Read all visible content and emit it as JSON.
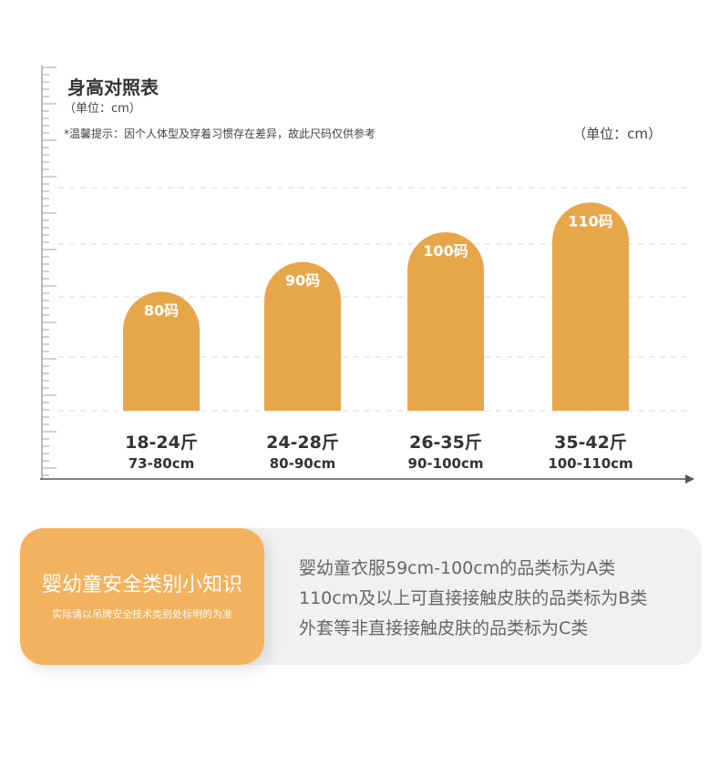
{
  "header": {
    "title": "身高对照表",
    "unit_small": "（单位：cm）",
    "tip": "*温馨提示：因个人体型及穿着习惯存在差异，故此尺码仅供参考",
    "unit_right": "（单位：cm）"
  },
  "chart_data": {
    "type": "bar",
    "title": "身高对照表",
    "categories": [
      "80码",
      "90码",
      "100码",
      "110码"
    ],
    "values": [
      80,
      90,
      100,
      110
    ],
    "weight_labels": [
      "18-24斤",
      "24-28斤",
      "26-35斤",
      "35-42斤"
    ],
    "height_ranges": [
      "73-80cm",
      "80-90cm",
      "90-100cm",
      "100-110cm"
    ],
    "unit": "cm",
    "ylim": [
      40,
      115
    ],
    "grid": true,
    "colors": {
      "bar": "#e8a64b",
      "grid": "#e2e2e2",
      "axis": "#555555",
      "ruler": "#b8b8b8"
    }
  },
  "info": {
    "badge_title": "婴幼童安全类别小知识",
    "badge_subtitle": "实际请以吊牌安全技术类别处标明的为准",
    "lines": [
      "婴幼童衣服59cm-100cm的品类标为A类",
      "110cm及以上可直接接触皮肤的品类标为B类",
      "外套等非直接接触皮肤的品类标为C类"
    ],
    "colors": {
      "badge": "#f3b25e",
      "card": "#f1f1f2"
    }
  }
}
